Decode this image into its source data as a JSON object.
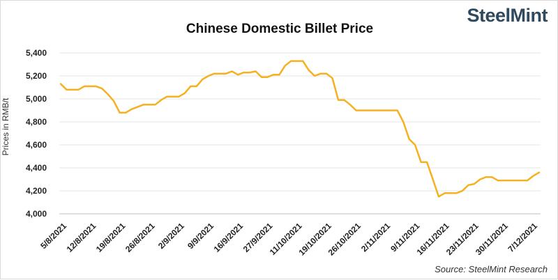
{
  "brand": {
    "logo_text": "SteelMint"
  },
  "colors": {
    "line": "#f5b120",
    "grid": "#e6e6e6",
    "axis": "#bfbfbf"
  },
  "chart_data": {
    "type": "line",
    "title": "Chinese Domestic Billet Price",
    "ylabel": "Prices in RMB/t",
    "xlabel": "",
    "source": "Source: SteelMint Research",
    "ylim": [
      4000,
      5400
    ],
    "yticks": [
      "4,000",
      "4,200",
      "4,400",
      "4,600",
      "4,800",
      "5,000",
      "5,200",
      "5,400"
    ],
    "grid": true,
    "xtick_labels": [
      "5/8/2021",
      "12/8/2021",
      "19/8/2021",
      "26/8/2021",
      "2/9/2021",
      "9/9/2021",
      "16/9/2021",
      "27/9/2021",
      "11/10/2021",
      "19/10/2021",
      "26/10/2021",
      "2/11/2021",
      "9/11/2021",
      "16/11/2021",
      "23/11/2021",
      "30/11/2021",
      "7/12/2021"
    ],
    "series": [
      {
        "values": [
          5130,
          5080,
          5080,
          5080,
          5110,
          5110,
          5110,
          5090,
          5040,
          4980,
          4880,
          4880,
          4910,
          4930,
          4950,
          4950,
          4950,
          4990,
          5020,
          5020,
          5020,
          5050,
          5110,
          5110,
          5170,
          5200,
          5220,
          5220,
          5220,
          5240,
          5210,
          5230,
          5230,
          5240,
          5190,
          5190,
          5210,
          5210,
          5290,
          5330,
          5330,
          5330,
          5250,
          5200,
          5220,
          5220,
          5180,
          4990,
          4990,
          4950,
          4900,
          4900,
          4900,
          4900,
          4900,
          4900,
          4900,
          4900,
          4800,
          4650,
          4600,
          4450,
          4450,
          4300,
          4150,
          4180,
          4180,
          4180,
          4200,
          4250,
          4260,
          4300,
          4320,
          4320,
          4290,
          4290,
          4290,
          4290,
          4290,
          4290,
          4330,
          4360
        ]
      }
    ]
  }
}
